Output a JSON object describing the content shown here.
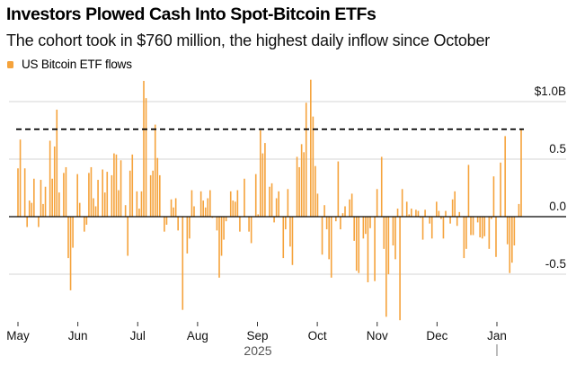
{
  "header": {
    "title": "Investors Plowed Cash Into Spot-Bitcoin ETFs",
    "subtitle": "The cohort took in $760 million, the highest daily inflow since October"
  },
  "chart_data": {
    "type": "bar",
    "title": "Investors Plowed Cash Into Spot-Bitcoin ETFs",
    "subtitle": "The cohort took in $760 million, the highest daily inflow since October",
    "xlabel": "2025",
    "ylabel": "",
    "unit": "USD billions",
    "legend": {
      "entries": [
        {
          "name": "US Bitcoin ETF flows",
          "color": "#f5a33c"
        }
      ],
      "placement": "top-left"
    },
    "grid": true,
    "ylim": [
      -0.9,
      1.2
    ],
    "yticks": [
      {
        "value": 1.0,
        "label": "$1.0B"
      },
      {
        "value": 0.5,
        "label": "0.5"
      },
      {
        "value": 0.0,
        "label": "0.0"
      },
      {
        "value": -0.5,
        "label": "-0.5"
      }
    ],
    "xticks": [
      "May",
      "Jun",
      "Jul",
      "Aug",
      "Sep",
      "Oct",
      "Nov",
      "Dec",
      "Jan"
    ],
    "x_range": [
      "2025-05-01",
      "2026-01-14"
    ],
    "reference_line": {
      "value": 0.76,
      "style": "dashed",
      "color": "#000000",
      "description": "Latest daily inflow level ($760 million)"
    },
    "series": [
      {
        "name": "US Bitcoin ETF flows",
        "color": "#f5a33c",
        "values": [
          0.42,
          0.67,
          0.0,
          0.42,
          -0.09,
          0.14,
          0.12,
          0.33,
          0.0,
          -0.09,
          0.32,
          0.11,
          0.26,
          0.0,
          0.66,
          0.33,
          0.61,
          0.93,
          0.21,
          0.0,
          0.38,
          0.43,
          -0.36,
          -0.64,
          -0.27,
          0.0,
          0.37,
          0.12,
          0.0,
          -0.13,
          -0.07,
          0.38,
          0.43,
          0.16,
          0.09,
          0.32,
          0.0,
          0.41,
          0.21,
          0.39,
          0.0,
          0.36,
          0.55,
          0.54,
          0.23,
          0.49,
          0.0,
          0.1,
          -0.34,
          0.4,
          0.54,
          0.0,
          0.22,
          0.07,
          0.22,
          1.18,
          1.03,
          0.0,
          0.36,
          0.4,
          0.8,
          0.51,
          0.36,
          0.0,
          -0.13,
          -0.07,
          0.0,
          0.15,
          0.08,
          0.16,
          -0.12,
          0.0,
          -0.81,
          0.0,
          -0.32,
          -0.19,
          0.23,
          0.09,
          0.0,
          0.0,
          0.22,
          0.14,
          0.08,
          0.16,
          0.23,
          -0.01,
          0.0,
          -0.12,
          -0.53,
          -0.34,
          -0.2,
          -0.04,
          0.0,
          0.22,
          0.14,
          0.13,
          0.23,
          -0.13,
          0.0,
          0.33,
          0.0,
          -0.13,
          -0.23,
          0.0,
          0.37,
          0.02,
          0.75,
          0.55,
          0.64,
          0.0,
          0.26,
          0.29,
          -0.05,
          0.16,
          0.22,
          0.0,
          -0.36,
          -0.11,
          0.24,
          -0.26,
          -0.42,
          0.0,
          0.52,
          0.43,
          0.63,
          0.56,
          0.99,
          0.0,
          1.19,
          0.87,
          0.44,
          0.2,
          0.0,
          -0.33,
          0.1,
          -0.11,
          -0.37,
          -0.53,
          0.0,
          -0.04,
          0.48,
          -0.11,
          0.03,
          0.09,
          0.0,
          0.15,
          0.2,
          -0.21,
          -0.47,
          -0.49,
          0.0,
          -0.19,
          -0.15,
          -0.57,
          -0.1,
          0.0,
          -0.56,
          0.24,
          0.0,
          0.52,
          -0.28,
          -0.87,
          -0.5,
          0.0,
          -0.25,
          -0.37,
          0.07,
          -0.9,
          0.24,
          0.0,
          0.13,
          0.02,
          0.07,
          0.0,
          0.06,
          0.05,
          -0.01,
          -0.2,
          0.06,
          0.0,
          -0.06,
          -0.19,
          0.0,
          0.13,
          0.05,
          -0.02,
          -0.19,
          0.05,
          0.0,
          -0.06,
          0.15,
          0.22,
          -0.08,
          0.04,
          0.0,
          -0.36,
          -0.28,
          0.45,
          -0.16,
          -0.16,
          0.0,
          -0.05,
          -0.18,
          -0.19,
          -0.17,
          0.0,
          -0.28,
          -0.02,
          0.35,
          -0.35,
          0.0,
          0.47,
          0.0,
          0.7,
          -0.24,
          -0.49,
          -0.4,
          -0.25,
          0.0,
          0.11,
          0.76
        ]
      }
    ]
  }
}
